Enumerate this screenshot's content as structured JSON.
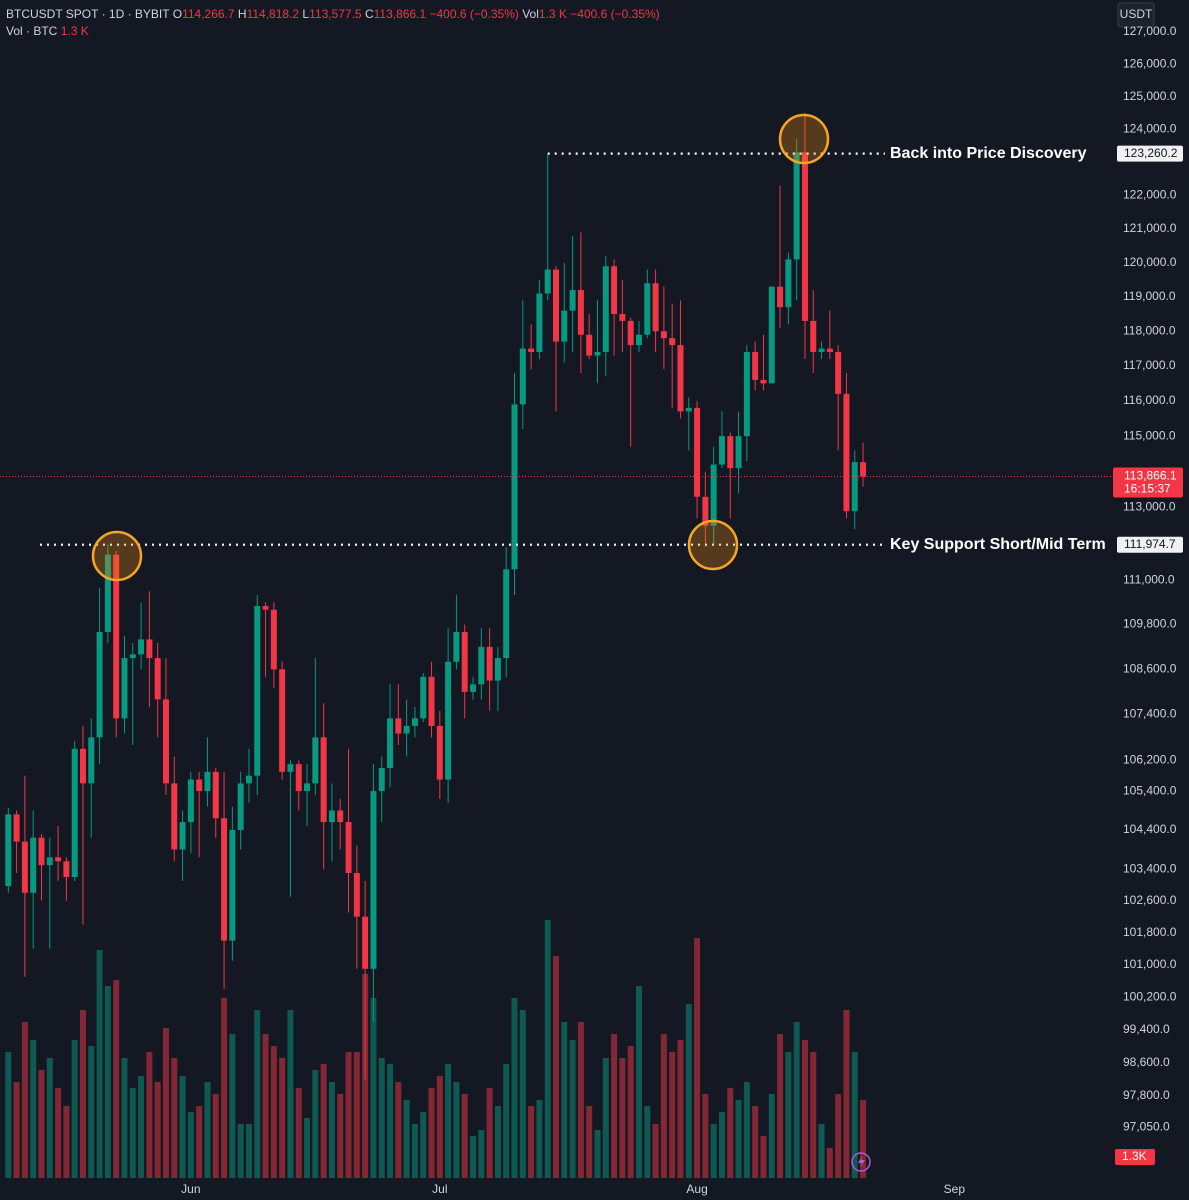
{
  "header": {
    "symbol": "BTCUSDT SPOT · 1D · BYBIT",
    "ohlc": [
      {
        "key": "O",
        "value": "114,266.7"
      },
      {
        "key": "H",
        "value": "114,818.2"
      },
      {
        "key": "L",
        "value": "113,577.5"
      },
      {
        "key": "C",
        "value": "113,866.1"
      }
    ],
    "change": "−400.6 (−0.35%)",
    "vol_key": "Vol",
    "vol_value": "1.3 K",
    "vol_change": "−400.6 (−0.35%)",
    "vol_line": "Vol · BTC",
    "vol_line_value": "1.3 K",
    "currency": "USDT"
  },
  "chart_data": {
    "type": "candlestick",
    "log_scale": true,
    "up_color": "#089981",
    "down_color": "#f23645",
    "open": [
      102970,
      104800,
      104100,
      102800,
      104200,
      103500,
      103700,
      103600,
      103200,
      106500,
      105600,
      106800,
      109600,
      111700,
      107300,
      108900,
      109000,
      109400,
      108900,
      107800,
      105600,
      103900,
      104600,
      105700,
      105400,
      105900,
      104700,
      101600,
      104400,
      105600,
      105800,
      110300,
      110200,
      108600,
      105900,
      106100,
      105400,
      105600,
      106800,
      104600,
      104900,
      104600,
      103300,
      102200,
      100900,
      105400,
      106000,
      107300,
      106900,
      107100,
      107300,
      108400,
      107100,
      105700,
      108800,
      109600,
      108000,
      108200,
      109200,
      108300,
      108900,
      111300,
      115900,
      117500,
      117400,
      119100,
      119800,
      117700,
      118600,
      119200,
      117900,
      117300,
      117400,
      119900,
      118500,
      118300,
      117600,
      117900,
      119400,
      118000,
      117800,
      117600,
      115700,
      115800,
      113300,
      112500,
      114200,
      115000,
      114100,
      115000,
      117400,
      116600,
      116500,
      119300,
      118700,
      120100,
      123300,
      118300,
      117400,
      117500,
      117400,
      116200,
      112900,
      114266.7
    ],
    "high": [
      104970,
      104900,
      105800,
      104900,
      104300,
      104200,
      104500,
      103700,
      106700,
      107100,
      107300,
      110800,
      111980,
      111800,
      109500,
      109300,
      110400,
      110700,
      109300,
      108900,
      106300,
      104900,
      105900,
      105900,
      106800,
      106000,
      105900,
      105000,
      105900,
      106500,
      110600,
      110400,
      110400,
      108800,
      106200,
      106200,
      106100,
      108900,
      107700,
      105600,
      105200,
      106500,
      104000,
      103100,
      106100,
      106300,
      108200,
      108200,
      107800,
      107600,
      108500,
      108800,
      107500,
      109700,
      110600,
      109800,
      108400,
      109700,
      109700,
      109200,
      111900,
      116800,
      118900,
      118200,
      119500,
      123260.2,
      119900,
      120000,
      120800,
      120900,
      118500,
      118900,
      120200,
      120100,
      119500,
      118400,
      118300,
      119800,
      119800,
      119300,
      118800,
      118900,
      116100,
      116000,
      114000,
      114700,
      115700,
      115100,
      115700,
      117600,
      117700,
      117900,
      119300,
      122300,
      120300,
      123700,
      124500,
      119200,
      117700,
      118600,
      117600,
      116800,
      114600,
      114818.2
    ],
    "low": [
      102800,
      103300,
      100700,
      101400,
      102600,
      101400,
      103100,
      102600,
      103100,
      102000,
      104200,
      106100,
      109300,
      106800,
      106900,
      106600,
      108600,
      107600,
      106800,
      105300,
      103600,
      103100,
      103800,
      103700,
      105000,
      104200,
      100400,
      101100,
      103900,
      105100,
      105300,
      108400,
      108100,
      105700,
      102700,
      104900,
      104500,
      105300,
      103400,
      103600,
      103900,
      102300,
      100900,
      98200,
      99600,
      104600,
      105500,
      106600,
      106300,
      106800,
      107200,
      106800,
      105200,
      105100,
      108600,
      107300,
      107800,
      107800,
      107500,
      107500,
      108400,
      110600,
      115200,
      116900,
      117200,
      118900,
      115700,
      117100,
      117400,
      116800,
      117200,
      116500,
      116700,
      117300,
      117400,
      114700,
      117400,
      117800,
      117400,
      116900,
      115800,
      115500,
      114600,
      112700,
      111920,
      112000,
      114100,
      112700,
      113400,
      114300,
      116300,
      116300,
      116500,
      118100,
      118200,
      118900,
      117200,
      116800,
      117200,
      117200,
      114600,
      112700,
      112400,
      113577.5
    ],
    "close": [
      104800,
      104100,
      102800,
      104200,
      103500,
      103700,
      103600,
      103200,
      106500,
      105600,
      106800,
      109600,
      111700,
      107300,
      108900,
      109000,
      109400,
      108900,
      107800,
      105600,
      103900,
      104600,
      105700,
      105400,
      105900,
      104700,
      101600,
      104400,
      105600,
      105800,
      110300,
      110200,
      108600,
      105900,
      106100,
      105400,
      105600,
      106800,
      104600,
      104900,
      104600,
      103300,
      102200,
      100900,
      105400,
      106000,
      107300,
      106900,
      107100,
      107300,
      108400,
      107100,
      105700,
      108800,
      109600,
      108000,
      108200,
      109200,
      108300,
      108900,
      111300,
      115900,
      117500,
      117400,
      119100,
      119800,
      117700,
      118600,
      119200,
      117900,
      117300,
      117400,
      119900,
      118500,
      118300,
      117600,
      117900,
      119400,
      118000,
      117800,
      117600,
      115700,
      115800,
      113300,
      112500,
      114200,
      115000,
      114100,
      115000,
      117400,
      116600,
      116500,
      119300,
      118700,
      120100,
      123300,
      118300,
      117400,
      117500,
      117400,
      116200,
      112900,
      114266.7,
      113866.1
    ],
    "volume": [
      2.1,
      1.6,
      2.6,
      2.3,
      1.8,
      2.0,
      1.5,
      1.2,
      2.3,
      2.8,
      2.2,
      3.8,
      3.2,
      3.3,
      2.0,
      1.5,
      1.7,
      2.1,
      1.6,
      2.5,
      2.0,
      1.7,
      1.1,
      1.2,
      1.6,
      1.4,
      3.0,
      2.4,
      0.9,
      0.9,
      2.8,
      2.4,
      2.2,
      2.0,
      2.8,
      1.5,
      1.0,
      1.8,
      1.9,
      1.6,
      1.4,
      2.1,
      2.1,
      3.4,
      3.0,
      2.0,
      1.9,
      1.6,
      1.3,
      0.9,
      1.1,
      1.5,
      1.7,
      1.9,
      1.6,
      1.4,
      0.7,
      0.8,
      1.5,
      1.2,
      1.9,
      3.0,
      2.8,
      1.2,
      1.3,
      4.3,
      3.7,
      2.6,
      2.3,
      2.6,
      1.2,
      0.8,
      2.0,
      2.4,
      2.0,
      2.2,
      3.2,
      1.2,
      0.9,
      2.4,
      2.1,
      2.3,
      2.9,
      4.0,
      1.4,
      0.9,
      1.1,
      1.5,
      1.3,
      1.6,
      1.2,
      0.7,
      1.4,
      2.4,
      2.1,
      2.6,
      2.3,
      2.1,
      0.9,
      0.5,
      1.4,
      2.8,
      2.1,
      1.3
    ],
    "vlim": [
      0,
      5
    ],
    "ylim": [
      95800,
      128000
    ],
    "yticks": [
      {
        "value": 127000,
        "label": "127,000.0"
      },
      {
        "value": 126000,
        "label": "126,000.0"
      },
      {
        "value": 125000,
        "label": "125,000.0"
      },
      {
        "value": 124000,
        "label": "124,000.0"
      },
      {
        "value": 122000,
        "label": "122,000.0"
      },
      {
        "value": 121000,
        "label": "121,000.0"
      },
      {
        "value": 120000,
        "label": "120,000.0"
      },
      {
        "value": 119000,
        "label": "119,000.0"
      },
      {
        "value": 118000,
        "label": "118,000.0"
      },
      {
        "value": 117000,
        "label": "117,000.0"
      },
      {
        "value": 116000,
        "label": "116,000.0"
      },
      {
        "value": 115000,
        "label": "115,000.0"
      },
      {
        "value": 113000,
        "label": "113,000.0"
      },
      {
        "value": 111000,
        "label": "111,000.0"
      },
      {
        "value": 109800,
        "label": "109,800.0"
      },
      {
        "value": 108600,
        "label": "108,600.0"
      },
      {
        "value": 107400,
        "label": "107,400.0"
      },
      {
        "value": 106200,
        "label": "106,200.0"
      },
      {
        "value": 105400,
        "label": "105,400.0"
      },
      {
        "value": 104400,
        "label": "104,400.0"
      },
      {
        "value": 103400,
        "label": "103,400.0"
      },
      {
        "value": 102600,
        "label": "102,600.0"
      },
      {
        "value": 101800,
        "label": "101,800.0"
      },
      {
        "value": 101000,
        "label": "101,000.0"
      },
      {
        "value": 100200,
        "label": "100,200.0"
      },
      {
        "value": 99400,
        "label": "99,400.0"
      },
      {
        "value": 98600,
        "label": "98,600.0"
      },
      {
        "value": 97800,
        "label": "97,800.0"
      },
      {
        "value": 97050,
        "label": "97,050.0"
      }
    ],
    "xlim": [
      -1,
      133
    ],
    "xticks": [
      {
        "value": 22,
        "label": "Jun"
      },
      {
        "value": 52,
        "label": "Jul"
      },
      {
        "value": 83,
        "label": "Aug"
      },
      {
        "value": 114,
        "label": "Sep"
      }
    ],
    "annotations": [
      {
        "text": "Back into Price Discovery",
        "value": 123260.2,
        "label": "123,260.2"
      },
      {
        "text": "Key Support Short/Mid Term",
        "value": 111974.7,
        "label": "111,974.7"
      }
    ],
    "current_price": {
      "value": 113866.1,
      "label": "113,866.1",
      "countdown": "16:15:37"
    },
    "current_volume": {
      "value": 1.3,
      "label": "1.3K"
    }
  }
}
